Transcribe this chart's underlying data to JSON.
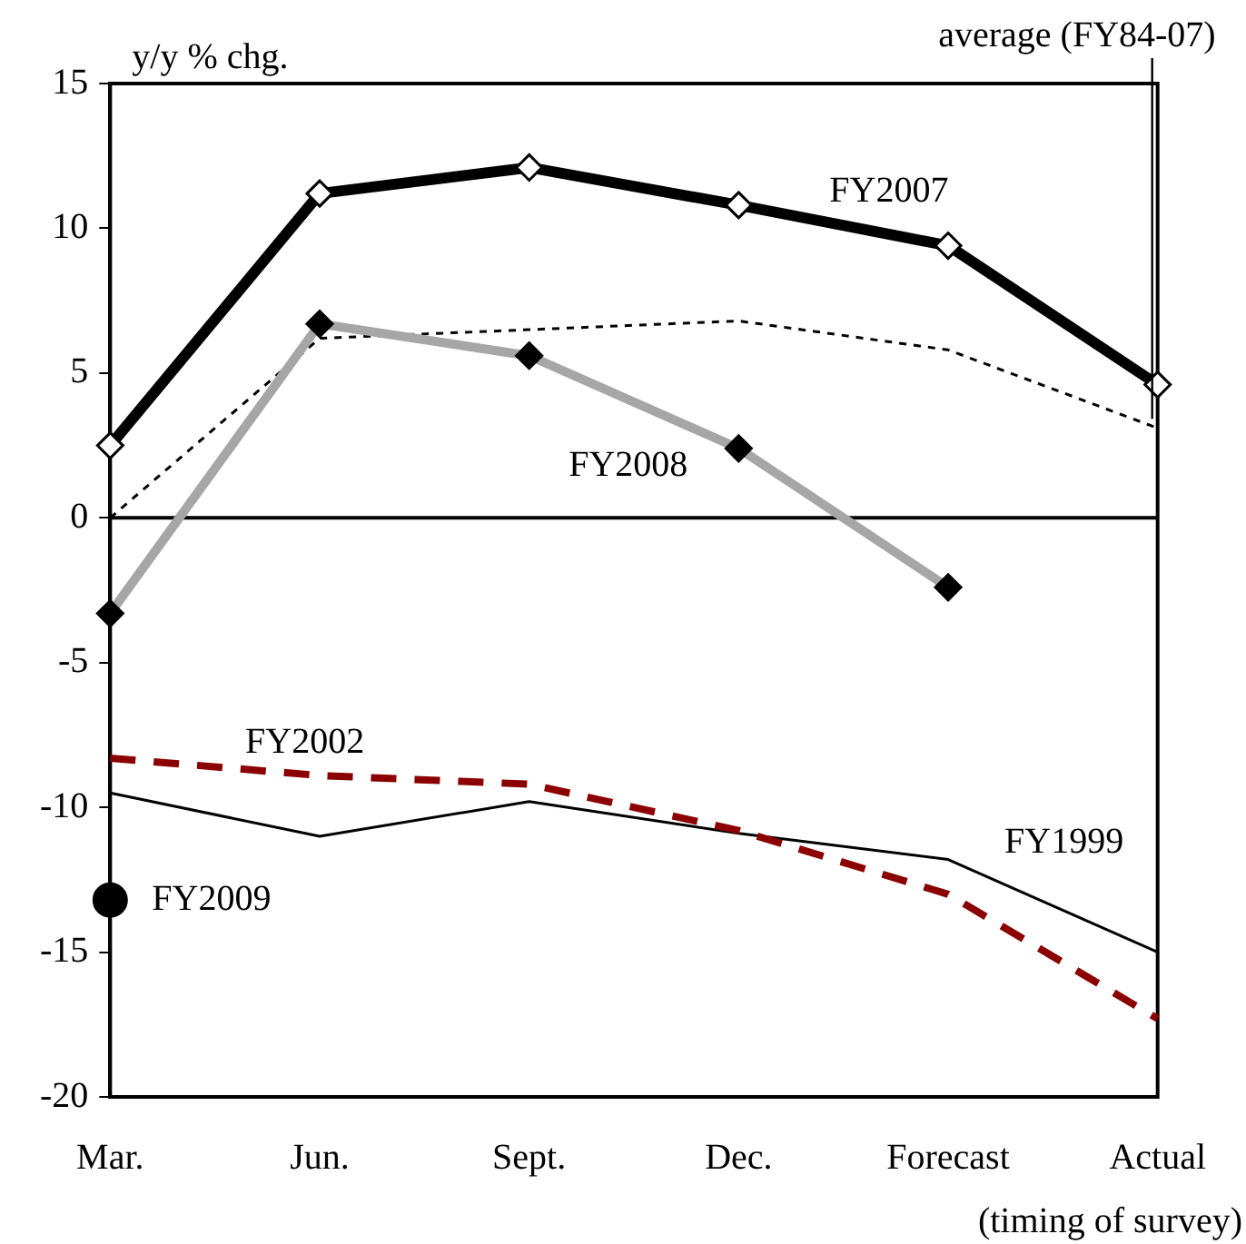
{
  "chart_data": {
    "type": "line",
    "ylabel": "y/y % chg.",
    "xlabel": "(timing of survey)",
    "categories": [
      "Mar.",
      "Jun.",
      "Sept.",
      "Dec.",
      "Forecast",
      "Actual"
    ],
    "ylim": [
      -20,
      15
    ],
    "yticks": [
      -20,
      -15,
      -10,
      -5,
      0,
      5,
      10,
      15
    ],
    "grid": false,
    "legend": false,
    "ref_lines": [
      {
        "axis": "y",
        "value": 0,
        "color": "#000000"
      }
    ],
    "series": [
      {
        "name": "FY2007",
        "color": "#000000",
        "marker": "diamond",
        "line_style": "solid",
        "values": [
          2.5,
          11.2,
          12.1,
          10.8,
          9.4,
          4.6
        ]
      },
      {
        "name": "FY2008",
        "color": "#a6a6a6",
        "marker": "diamond",
        "line_style": "solid",
        "values": [
          -3.3,
          6.7,
          5.6,
          2.4,
          -2.4,
          null
        ]
      },
      {
        "name": "average (FY84-07)",
        "color": "#000000",
        "marker": "none",
        "line_style": "dotted",
        "values": [
          0,
          6.2,
          6.5,
          6.8,
          5.8,
          3.1
        ]
      },
      {
        "name": "FY2002",
        "color": "#8b0000",
        "marker": "none",
        "line_style": "dashed",
        "values": [
          -8.3,
          -8.9,
          -9.2,
          -10.8,
          -13.0,
          -17.3
        ]
      },
      {
        "name": "FY1999",
        "color": "#000000",
        "marker": "none",
        "line_style": "solid",
        "values": [
          -9.5,
          -11.0,
          -9.8,
          -10.9,
          -11.8,
          -15.0
        ]
      },
      {
        "name": "FY2009",
        "color": "#000000",
        "marker": "circle",
        "line_style": "solid",
        "values": [
          -13.2,
          null,
          null,
          null,
          null,
          null
        ]
      }
    ]
  }
}
